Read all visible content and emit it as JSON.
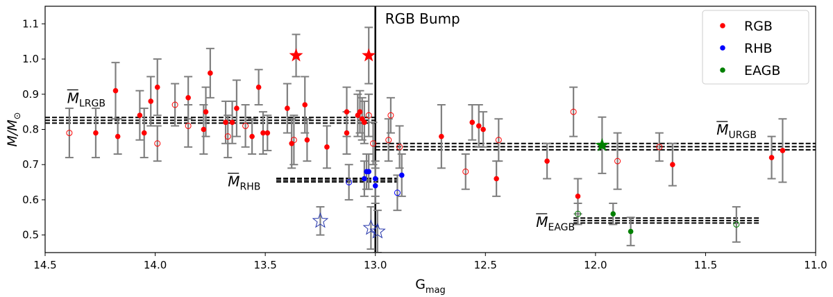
{
  "chart_data": {
    "type": "scatter",
    "xlabel": "G",
    "xlabel_sub": "mag",
    "ylabel": "M/M",
    "ylabel_sub": "⊙",
    "xlim": [
      14.5,
      11.0
    ],
    "ylim": [
      0.45,
      1.15
    ],
    "x_inverted": true,
    "x_ticks": [
      14.5,
      14.0,
      13.5,
      13.0,
      12.5,
      12.0,
      11.5,
      11.0
    ],
    "x_tick_labels": [
      "14.5",
      "14.0",
      "13.5",
      "13.0",
      "12.5",
      "12.0",
      "11.5",
      "11.0"
    ],
    "y_ticks": [
      0.5,
      0.6,
      0.7,
      0.8,
      0.9,
      1.0,
      1.1
    ],
    "y_tick_labels": [
      "0.5",
      "0.6",
      "0.7",
      "0.8",
      "0.9",
      "1.0",
      "1.1"
    ],
    "grid": false,
    "legend_position": "top-right",
    "colors": {
      "RGB": "#ff0000",
      "RHB": "#0000ff",
      "EAGB": "#008000",
      "errorbar": "#7f7f7f",
      "open_star": "#2233aa"
    },
    "series": [
      {
        "name": "RGB",
        "marker": "filled-circle",
        "points": [
          {
            "x": 14.27,
            "y": 0.79,
            "err": 0.07
          },
          {
            "x": 14.18,
            "y": 0.91,
            "err": 0.08
          },
          {
            "x": 14.17,
            "y": 0.78,
            "err": 0.05
          },
          {
            "x": 14.07,
            "y": 0.84,
            "err": 0.07
          },
          {
            "x": 14.05,
            "y": 0.79,
            "err": 0.07
          },
          {
            "x": 14.02,
            "y": 0.88,
            "err": 0.07
          },
          {
            "x": 13.99,
            "y": 0.92,
            "err": 0.08
          },
          {
            "x": 13.85,
            "y": 0.89,
            "err": 0.06
          },
          {
            "x": 13.78,
            "y": 0.8,
            "err": 0.07
          },
          {
            "x": 13.77,
            "y": 0.85,
            "err": 0.07
          },
          {
            "x": 13.75,
            "y": 0.96,
            "err": 0.07
          },
          {
            "x": 13.68,
            "y": 0.82,
            "err": 0.06
          },
          {
            "x": 13.65,
            "y": 0.82,
            "err": 0.06
          },
          {
            "x": 13.63,
            "y": 0.86,
            "err": 0.08
          },
          {
            "x": 13.56,
            "y": 0.78,
            "err": 0.05
          },
          {
            "x": 13.53,
            "y": 0.92,
            "err": 0.05
          },
          {
            "x": 13.51,
            "y": 0.79,
            "err": 0.06
          },
          {
            "x": 13.49,
            "y": 0.79,
            "err": 0.05
          },
          {
            "x": 13.4,
            "y": 0.86,
            "err": 0.07
          },
          {
            "x": 13.38,
            "y": 0.76,
            "err": 0.07
          },
          {
            "x": 13.32,
            "y": 0.87,
            "err": 0.08
          },
          {
            "x": 13.31,
            "y": 0.77,
            "err": 0.06
          },
          {
            "x": 13.22,
            "y": 0.75,
            "err": 0.06
          },
          {
            "x": 13.13,
            "y": 0.85,
            "err": 0.07
          },
          {
            "x": 13.13,
            "y": 0.79,
            "err": 0.06
          },
          {
            "x": 13.08,
            "y": 0.84,
            "err": 0.06
          },
          {
            "x": 13.07,
            "y": 0.85,
            "err": 0.06
          },
          {
            "x": 13.06,
            "y": 0.83,
            "err": 0.06
          },
          {
            "x": 13.05,
            "y": 0.82,
            "err": 0.06
          },
          {
            "x": 12.7,
            "y": 0.78,
            "err": 0.09
          },
          {
            "x": 12.56,
            "y": 0.82,
            "err": 0.05
          },
          {
            "x": 12.53,
            "y": 0.81,
            "err": 0.06
          },
          {
            "x": 12.51,
            "y": 0.8,
            "err": 0.05
          },
          {
            "x": 12.45,
            "y": 0.66,
            "err": 0.05
          },
          {
            "x": 12.22,
            "y": 0.71,
            "err": 0.05
          },
          {
            "x": 12.08,
            "y": 0.61,
            "err": 0.05
          },
          {
            "x": 11.65,
            "y": 0.7,
            "err": 0.06
          },
          {
            "x": 11.2,
            "y": 0.72,
            "err": 0.06
          },
          {
            "x": 11.15,
            "y": 0.74,
            "err": 0.09
          }
        ]
      },
      {
        "name": "RGB-open",
        "marker": "open-circle",
        "color_key": "RGB",
        "points": [
          {
            "x": 14.39,
            "y": 0.79,
            "err": 0.07
          },
          {
            "x": 13.99,
            "y": 0.76,
            "err": 0.05
          },
          {
            "x": 13.91,
            "y": 0.87,
            "err": 0.06
          },
          {
            "x": 13.85,
            "y": 0.81,
            "err": 0.06
          },
          {
            "x": 13.67,
            "y": 0.78,
            "err": 0.06
          },
          {
            "x": 13.59,
            "y": 0.81,
            "err": 0.06
          },
          {
            "x": 13.37,
            "y": 0.77,
            "err": 0.07
          },
          {
            "x": 13.03,
            "y": 0.84,
            "err": 0.06
          },
          {
            "x": 13.01,
            "y": 0.76,
            "err": 0.06
          },
          {
            "x": 12.94,
            "y": 0.77,
            "err": 0.06
          },
          {
            "x": 12.93,
            "y": 0.84,
            "err": 0.05
          },
          {
            "x": 12.89,
            "y": 0.75,
            "err": 0.06
          },
          {
            "x": 12.59,
            "y": 0.68,
            "err": 0.05
          },
          {
            "x": 12.44,
            "y": 0.77,
            "err": 0.06
          },
          {
            "x": 12.1,
            "y": 0.85,
            "err": 0.07
          },
          {
            "x": 11.9,
            "y": 0.71,
            "err": 0.08
          },
          {
            "x": 11.71,
            "y": 0.75,
            "err": 0.04
          }
        ]
      },
      {
        "name": "RGB-star",
        "marker": "filled-star",
        "color_key": "RGB",
        "points": [
          {
            "x": 13.36,
            "y": 1.01,
            "err": 0.06
          },
          {
            "x": 13.03,
            "y": 1.01,
            "err": 0.08
          }
        ]
      },
      {
        "name": "RHB",
        "marker": "filled-circle",
        "points": [
          {
            "x": 13.04,
            "y": 0.68,
            "err": 0.05
          },
          {
            "x": 13.03,
            "y": 0.68,
            "err": 0.05
          },
          {
            "x": 13.05,
            "y": 0.66,
            "err": 0.05
          },
          {
            "x": 13.0,
            "y": 0.66,
            "err": 0.05
          },
          {
            "x": 13.0,
            "y": 0.64,
            "err": 0.05
          },
          {
            "x": 12.88,
            "y": 0.67,
            "err": 0.06
          }
        ]
      },
      {
        "name": "RHB-open",
        "marker": "open-circle",
        "color_key": "RHB",
        "points": [
          {
            "x": 13.12,
            "y": 0.65,
            "err": 0.05
          },
          {
            "x": 12.9,
            "y": 0.62,
            "err": 0.05
          }
        ]
      },
      {
        "name": "RHB-star",
        "marker": "open-star",
        "color_key": "open_star",
        "points": [
          {
            "x": 13.25,
            "y": 0.54,
            "err": 0.04
          },
          {
            "x": 13.02,
            "y": 0.52,
            "err": 0.06
          },
          {
            "x": 12.99,
            "y": 0.51,
            "err": 0.06
          }
        ]
      },
      {
        "name": "EAGB",
        "marker": "filled-circle",
        "points": [
          {
            "x": 11.92,
            "y": 0.56,
            "err": 0.03
          },
          {
            "x": 11.84,
            "y": 0.51,
            "err": 0.04
          }
        ]
      },
      {
        "name": "EAGB-open",
        "marker": "open-circle",
        "color_key": "EAGB",
        "points": [
          {
            "x": 12.08,
            "y": 0.56,
            "err": 0.03
          },
          {
            "x": 11.36,
            "y": 0.53,
            "err": 0.05
          }
        ]
      },
      {
        "name": "EAGB-star",
        "marker": "filled-star",
        "color_key": "EAGB",
        "points": [
          {
            "x": 11.97,
            "y": 0.755,
            "err": 0.08
          }
        ]
      }
    ],
    "reference_lines": [
      {
        "x_range": [
          14.5,
          13.0
        ],
        "y": 0.826,
        "band": 0.008
      },
      {
        "x_range": [
          13.45,
          12.9
        ],
        "y": 0.656,
        "band": 0.005
      },
      {
        "x_range": [
          13.0,
          11.0
        ],
        "y": 0.751,
        "band": 0.009
      },
      {
        "x_range": [
          12.1,
          11.25
        ],
        "y": 0.541,
        "band": 0.007
      }
    ],
    "vertical_line": {
      "x": 13.0
    },
    "annotations": {
      "bump": "RGB Bump",
      "lrgb": {
        "symbol": "M",
        "sub": "LRGB",
        "x": 14.4,
        "y": 0.875
      },
      "rhb": {
        "symbol": "M",
        "sub": "RHB",
        "x": 13.67,
        "y": 0.638
      },
      "urgb": {
        "symbol": "M",
        "sub": "URGB",
        "x": 11.45,
        "y": 0.785
      },
      "eagb": {
        "symbol": "M",
        "sub": "EAGB",
        "x": 12.27,
        "y": 0.523
      }
    },
    "legend": [
      "RGB",
      "RHB",
      "EAGB"
    ]
  }
}
